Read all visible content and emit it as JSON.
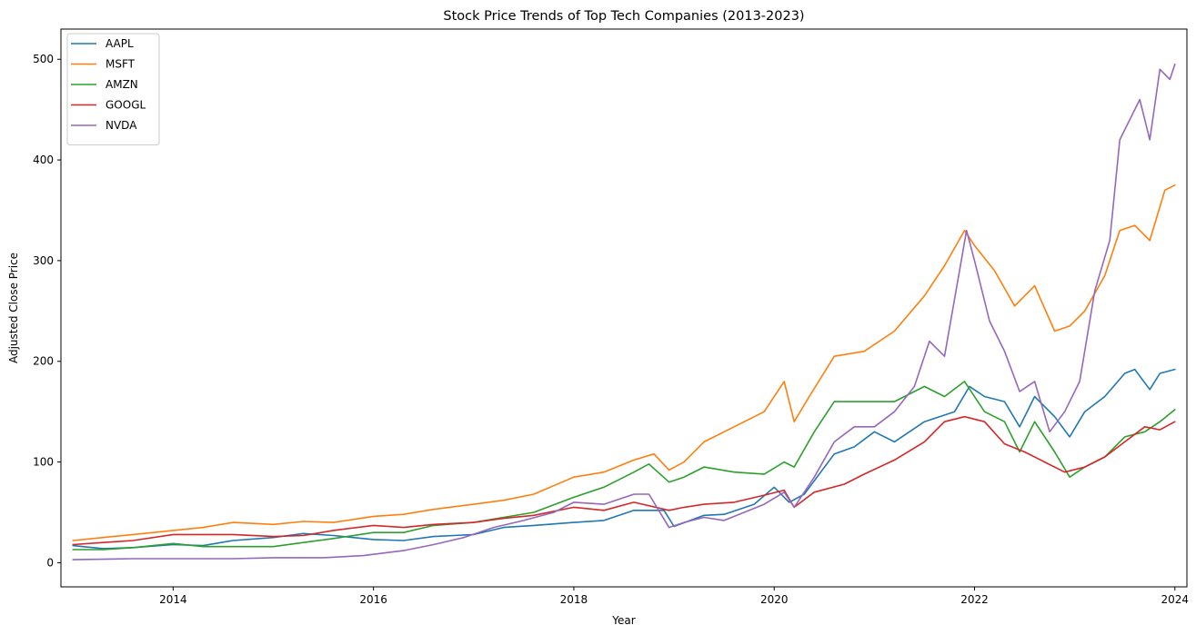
{
  "chart_data": {
    "type": "line",
    "title": "Stock Price Trends of Top Tech Companies (2013-2023)",
    "xlabel": "Year",
    "ylabel": "Adjusted Close Price",
    "xlim": [
      2012.88,
      2024.12
    ],
    "ylim": [
      -24,
      530
    ],
    "xticks": [
      2014,
      2016,
      2018,
      2020,
      2022,
      2024
    ],
    "yticks": [
      0,
      100,
      200,
      300,
      400,
      500
    ],
    "grid": false,
    "legend_position": "upper-left",
    "series": [
      {
        "name": "AAPL",
        "color": "#1f77b4",
        "points": [
          [
            2013.0,
            17
          ],
          [
            2013.3,
            14
          ],
          [
            2013.6,
            15
          ],
          [
            2014.0,
            18
          ],
          [
            2014.3,
            17
          ],
          [
            2014.6,
            22
          ],
          [
            2015.0,
            25
          ],
          [
            2015.3,
            29
          ],
          [
            2015.6,
            27
          ],
          [
            2016.0,
            23
          ],
          [
            2016.3,
            22
          ],
          [
            2016.6,
            26
          ],
          [
            2017.0,
            28
          ],
          [
            2017.3,
            35
          ],
          [
            2017.6,
            37
          ],
          [
            2018.0,
            40
          ],
          [
            2018.3,
            42
          ],
          [
            2018.6,
            52
          ],
          [
            2018.9,
            52
          ],
          [
            2019.0,
            36
          ],
          [
            2019.3,
            47
          ],
          [
            2019.5,
            48
          ],
          [
            2019.8,
            58
          ],
          [
            2020.0,
            75
          ],
          [
            2020.15,
            60
          ],
          [
            2020.3,
            68
          ],
          [
            2020.6,
            108
          ],
          [
            2020.8,
            115
          ],
          [
            2021.0,
            130
          ],
          [
            2021.2,
            120
          ],
          [
            2021.5,
            140
          ],
          [
            2021.8,
            150
          ],
          [
            2021.95,
            175
          ],
          [
            2022.1,
            165
          ],
          [
            2022.3,
            160
          ],
          [
            2022.45,
            135
          ],
          [
            2022.6,
            165
          ],
          [
            2022.8,
            145
          ],
          [
            2022.95,
            125
          ],
          [
            2023.1,
            150
          ],
          [
            2023.3,
            165
          ],
          [
            2023.5,
            188
          ],
          [
            2023.6,
            192
          ],
          [
            2023.75,
            172
          ],
          [
            2023.85,
            188
          ],
          [
            2024.0,
            192
          ]
        ]
      },
      {
        "name": "MSFT",
        "color": "#ff7f0e",
        "points": [
          [
            2013.0,
            22
          ],
          [
            2013.3,
            25
          ],
          [
            2013.6,
            28
          ],
          [
            2014.0,
            32
          ],
          [
            2014.3,
            35
          ],
          [
            2014.6,
            40
          ],
          [
            2015.0,
            38
          ],
          [
            2015.3,
            41
          ],
          [
            2015.6,
            40
          ],
          [
            2016.0,
            46
          ],
          [
            2016.3,
            48
          ],
          [
            2016.6,
            53
          ],
          [
            2017.0,
            58
          ],
          [
            2017.3,
            62
          ],
          [
            2017.6,
            68
          ],
          [
            2018.0,
            85
          ],
          [
            2018.3,
            90
          ],
          [
            2018.6,
            102
          ],
          [
            2018.8,
            108
          ],
          [
            2018.95,
            92
          ],
          [
            2019.1,
            100
          ],
          [
            2019.3,
            120
          ],
          [
            2019.6,
            135
          ],
          [
            2019.9,
            150
          ],
          [
            2020.1,
            180
          ],
          [
            2020.2,
            140
          ],
          [
            2020.35,
            165
          ],
          [
            2020.6,
            205
          ],
          [
            2020.9,
            210
          ],
          [
            2021.2,
            230
          ],
          [
            2021.5,
            265
          ],
          [
            2021.7,
            295
          ],
          [
            2021.9,
            330
          ],
          [
            2022.0,
            315
          ],
          [
            2022.2,
            290
          ],
          [
            2022.4,
            255
          ],
          [
            2022.6,
            275
          ],
          [
            2022.8,
            230
          ],
          [
            2022.95,
            235
          ],
          [
            2023.1,
            250
          ],
          [
            2023.3,
            285
          ],
          [
            2023.45,
            330
          ],
          [
            2023.6,
            335
          ],
          [
            2023.75,
            320
          ],
          [
            2023.9,
            370
          ],
          [
            2024.0,
            375
          ]
        ]
      },
      {
        "name": "AMZN",
        "color": "#2ca02c",
        "points": [
          [
            2013.0,
            13
          ],
          [
            2013.3,
            13
          ],
          [
            2013.6,
            15
          ],
          [
            2014.0,
            19
          ],
          [
            2014.3,
            16
          ],
          [
            2014.6,
            16
          ],
          [
            2015.0,
            16
          ],
          [
            2015.3,
            20
          ],
          [
            2015.6,
            24
          ],
          [
            2016.0,
            30
          ],
          [
            2016.3,
            30
          ],
          [
            2016.6,
            37
          ],
          [
            2017.0,
            40
          ],
          [
            2017.3,
            45
          ],
          [
            2017.6,
            50
          ],
          [
            2018.0,
            65
          ],
          [
            2018.3,
            75
          ],
          [
            2018.6,
            90
          ],
          [
            2018.75,
            98
          ],
          [
            2018.95,
            80
          ],
          [
            2019.1,
            85
          ],
          [
            2019.3,
            95
          ],
          [
            2019.6,
            90
          ],
          [
            2019.9,
            88
          ],
          [
            2020.1,
            100
          ],
          [
            2020.2,
            95
          ],
          [
            2020.4,
            130
          ],
          [
            2020.6,
            160
          ],
          [
            2020.9,
            160
          ],
          [
            2021.2,
            160
          ],
          [
            2021.5,
            175
          ],
          [
            2021.7,
            165
          ],
          [
            2021.9,
            180
          ],
          [
            2022.1,
            150
          ],
          [
            2022.3,
            140
          ],
          [
            2022.45,
            110
          ],
          [
            2022.6,
            140
          ],
          [
            2022.8,
            110
          ],
          [
            2022.95,
            85
          ],
          [
            2023.1,
            95
          ],
          [
            2023.3,
            105
          ],
          [
            2023.5,
            125
          ],
          [
            2023.7,
            130
          ],
          [
            2023.85,
            140
          ],
          [
            2024.0,
            152
          ]
        ]
      },
      {
        "name": "GOOGL",
        "color": "#d62728",
        "points": [
          [
            2013.0,
            18
          ],
          [
            2013.3,
            20
          ],
          [
            2013.6,
            22
          ],
          [
            2014.0,
            28
          ],
          [
            2014.3,
            28
          ],
          [
            2014.6,
            28
          ],
          [
            2015.0,
            26
          ],
          [
            2015.3,
            27
          ],
          [
            2015.6,
            32
          ],
          [
            2016.0,
            37
          ],
          [
            2016.3,
            35
          ],
          [
            2016.6,
            38
          ],
          [
            2017.0,
            40
          ],
          [
            2017.3,
            44
          ],
          [
            2017.6,
            47
          ],
          [
            2018.0,
            55
          ],
          [
            2018.3,
            52
          ],
          [
            2018.6,
            60
          ],
          [
            2018.95,
            52
          ],
          [
            2019.1,
            55
          ],
          [
            2019.3,
            58
          ],
          [
            2019.6,
            60
          ],
          [
            2019.9,
            67
          ],
          [
            2020.1,
            72
          ],
          [
            2020.2,
            55
          ],
          [
            2020.4,
            70
          ],
          [
            2020.7,
            78
          ],
          [
            2020.9,
            88
          ],
          [
            2021.2,
            102
          ],
          [
            2021.5,
            120
          ],
          [
            2021.7,
            140
          ],
          [
            2021.9,
            145
          ],
          [
            2022.1,
            140
          ],
          [
            2022.3,
            118
          ],
          [
            2022.5,
            110
          ],
          [
            2022.7,
            100
          ],
          [
            2022.9,
            90
          ],
          [
            2023.1,
            95
          ],
          [
            2023.3,
            105
          ],
          [
            2023.5,
            120
          ],
          [
            2023.7,
            135
          ],
          [
            2023.85,
            132
          ],
          [
            2024.0,
            140
          ]
        ]
      },
      {
        "name": "NVDA",
        "color": "#9467bd",
        "points": [
          [
            2013.0,
            3
          ],
          [
            2013.6,
            4
          ],
          [
            2014.0,
            4
          ],
          [
            2014.6,
            4
          ],
          [
            2015.0,
            5
          ],
          [
            2015.5,
            5
          ],
          [
            2015.9,
            7
          ],
          [
            2016.3,
            12
          ],
          [
            2016.6,
            18
          ],
          [
            2016.9,
            25
          ],
          [
            2017.2,
            35
          ],
          [
            2017.5,
            42
          ],
          [
            2017.8,
            50
          ],
          [
            2018.0,
            60
          ],
          [
            2018.3,
            58
          ],
          [
            2018.6,
            68
          ],
          [
            2018.75,
            68
          ],
          [
            2018.95,
            35
          ],
          [
            2019.1,
            40
          ],
          [
            2019.3,
            45
          ],
          [
            2019.5,
            42
          ],
          [
            2019.7,
            50
          ],
          [
            2019.9,
            58
          ],
          [
            2020.1,
            70
          ],
          [
            2020.2,
            55
          ],
          [
            2020.4,
            85
          ],
          [
            2020.6,
            120
          ],
          [
            2020.8,
            135
          ],
          [
            2021.0,
            135
          ],
          [
            2021.2,
            150
          ],
          [
            2021.4,
            175
          ],
          [
            2021.55,
            220
          ],
          [
            2021.7,
            205
          ],
          [
            2021.85,
            290
          ],
          [
            2021.92,
            330
          ],
          [
            2022.0,
            300
          ],
          [
            2022.15,
            240
          ],
          [
            2022.3,
            210
          ],
          [
            2022.45,
            170
          ],
          [
            2022.6,
            180
          ],
          [
            2022.75,
            130
          ],
          [
            2022.9,
            150
          ],
          [
            2023.05,
            180
          ],
          [
            2023.2,
            270
          ],
          [
            2023.35,
            320
          ],
          [
            2023.45,
            420
          ],
          [
            2023.55,
            440
          ],
          [
            2023.65,
            460
          ],
          [
            2023.75,
            420
          ],
          [
            2023.85,
            490
          ],
          [
            2023.95,
            480
          ],
          [
            2024.0,
            495
          ]
        ]
      }
    ]
  }
}
